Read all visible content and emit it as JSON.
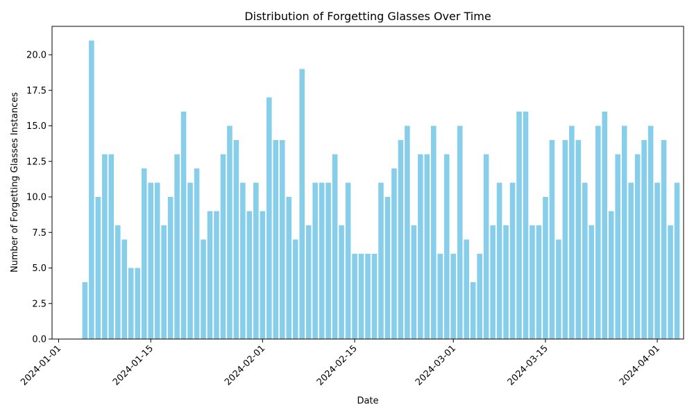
{
  "chart_data": {
    "type": "bar",
    "title": "Distribution of Forgetting Glasses Over Time",
    "xlabel": "Date",
    "ylabel": "Number of Forgetting Glasses Instances",
    "bar_color": "#87ceeb",
    "grid": false,
    "legend": "none",
    "ylim": [
      0,
      22
    ],
    "xlim": [
      "2023-12-31",
      "2024-04-05"
    ],
    "x_ticks": [
      "2024-01-01",
      "2024-01-15",
      "2024-02-01",
      "2024-02-15",
      "2024-03-01",
      "2024-03-15",
      "2024-04-01"
    ],
    "y_ticks": [
      "0.0",
      "2.5",
      "5.0",
      "7.5",
      "10.0",
      "12.5",
      "15.0",
      "17.5",
      "20.0"
    ],
    "x": [
      "2024-01-05",
      "2024-01-06",
      "2024-01-07",
      "2024-01-08",
      "2024-01-09",
      "2024-01-10",
      "2024-01-11",
      "2024-01-12",
      "2024-01-13",
      "2024-01-14",
      "2024-01-15",
      "2024-01-16",
      "2024-01-17",
      "2024-01-18",
      "2024-01-19",
      "2024-01-20",
      "2024-01-21",
      "2024-01-22",
      "2024-01-23",
      "2024-01-24",
      "2024-01-25",
      "2024-01-26",
      "2024-01-27",
      "2024-01-28",
      "2024-01-29",
      "2024-01-30",
      "2024-01-31",
      "2024-02-01",
      "2024-02-02",
      "2024-02-03",
      "2024-02-04",
      "2024-02-05",
      "2024-02-06",
      "2024-02-07",
      "2024-02-08",
      "2024-02-09",
      "2024-02-10",
      "2024-02-11",
      "2024-02-12",
      "2024-02-13",
      "2024-02-14",
      "2024-02-15",
      "2024-02-16",
      "2024-02-17",
      "2024-02-18",
      "2024-02-19",
      "2024-02-20",
      "2024-02-21",
      "2024-02-22",
      "2024-02-23",
      "2024-02-24",
      "2024-02-25",
      "2024-02-26",
      "2024-02-27",
      "2024-02-28",
      "2024-02-29",
      "2024-03-01",
      "2024-03-02",
      "2024-03-03",
      "2024-03-04",
      "2024-03-05",
      "2024-03-06",
      "2024-03-07",
      "2024-03-08",
      "2024-03-09",
      "2024-03-10",
      "2024-03-11",
      "2024-03-12",
      "2024-03-13",
      "2024-03-14",
      "2024-03-15",
      "2024-03-16",
      "2024-03-17",
      "2024-03-18",
      "2024-03-19",
      "2024-03-20",
      "2024-03-21",
      "2024-03-22",
      "2024-03-23",
      "2024-03-24",
      "2024-03-25",
      "2024-03-26",
      "2024-03-27",
      "2024-03-28",
      "2024-03-29",
      "2024-03-30",
      "2024-03-31",
      "2024-04-01",
      "2024-04-02",
      "2024-04-03",
      "2024-04-04"
    ],
    "values": [
      4,
      21,
      10,
      13,
      13,
      8,
      7,
      5,
      5,
      12,
      11,
      11,
      8,
      10,
      13,
      16,
      11,
      12,
      7,
      9,
      9,
      13,
      15,
      14,
      11,
      9,
      11,
      9,
      17,
      14,
      14,
      10,
      7,
      19,
      8,
      11,
      11,
      11,
      13,
      8,
      11,
      6,
      6,
      6,
      6,
      11,
      10,
      12,
      14,
      15,
      8,
      13,
      13,
      15,
      6,
      13,
      6,
      15,
      7,
      4,
      6,
      13,
      8,
      11,
      8,
      11,
      16,
      16,
      8,
      8,
      10,
      14,
      7,
      14,
      15,
      14,
      11,
      8,
      15,
      16,
      9,
      13,
      15,
      11,
      13,
      14,
      15,
      11,
      14,
      8,
      11
    ]
  }
}
